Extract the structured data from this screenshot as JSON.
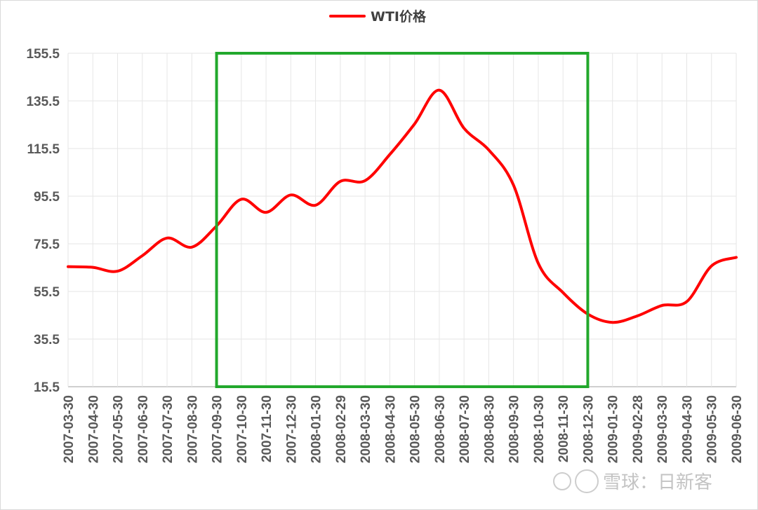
{
  "colors": {
    "series": "#ff0000",
    "highlight_box": "#22a82c",
    "grid": "#e6e6e6",
    "tick_text": "#595959"
  },
  "chart_data": {
    "type": "line",
    "title": "",
    "xlabel": "",
    "ylabel": "",
    "legend_position": "top-center",
    "grid": true,
    "ylim": [
      15.5,
      155.5
    ],
    "yticks": [
      15.5,
      35.5,
      55.5,
      75.5,
      95.5,
      115.5,
      135.5,
      155.5
    ],
    "categories": [
      "2007-03-30",
      "2007-04-30",
      "2007-05-30",
      "2007-06-30",
      "2007-07-30",
      "2007-08-30",
      "2007-09-30",
      "2007-10-30",
      "2007-11-30",
      "2007-12-30",
      "2008-01-30",
      "2008-02-29",
      "2008-03-30",
      "2008-04-30",
      "2008-05-30",
      "2008-06-30",
      "2008-07-30",
      "2008-08-30",
      "2008-09-30",
      "2008-10-30",
      "2008-11-30",
      "2008-12-30",
      "2009-01-30",
      "2009-02-28",
      "2009-03-30",
      "2009-04-30",
      "2009-05-30",
      "2009-06-30"
    ],
    "series": [
      {
        "name": "WTI价格",
        "values": [
          65.9,
          65.6,
          64.0,
          70.5,
          77.9,
          74.1,
          83.0,
          94.2,
          88.7,
          96.0,
          91.7,
          101.7,
          102.0,
          113.0,
          125.8,
          140.0,
          124.0,
          114.9,
          100.1,
          67.3,
          55.0,
          46.0,
          42.5,
          45.2,
          49.6,
          51.2,
          66.2,
          69.8
        ]
      }
    ],
    "highlight_box": {
      "x_start": "2007-09-30",
      "x_end": "2008-12-30",
      "y_min": 15.5,
      "y_max": 155.5
    }
  },
  "watermark": {
    "text": "雪球：日新客"
  }
}
